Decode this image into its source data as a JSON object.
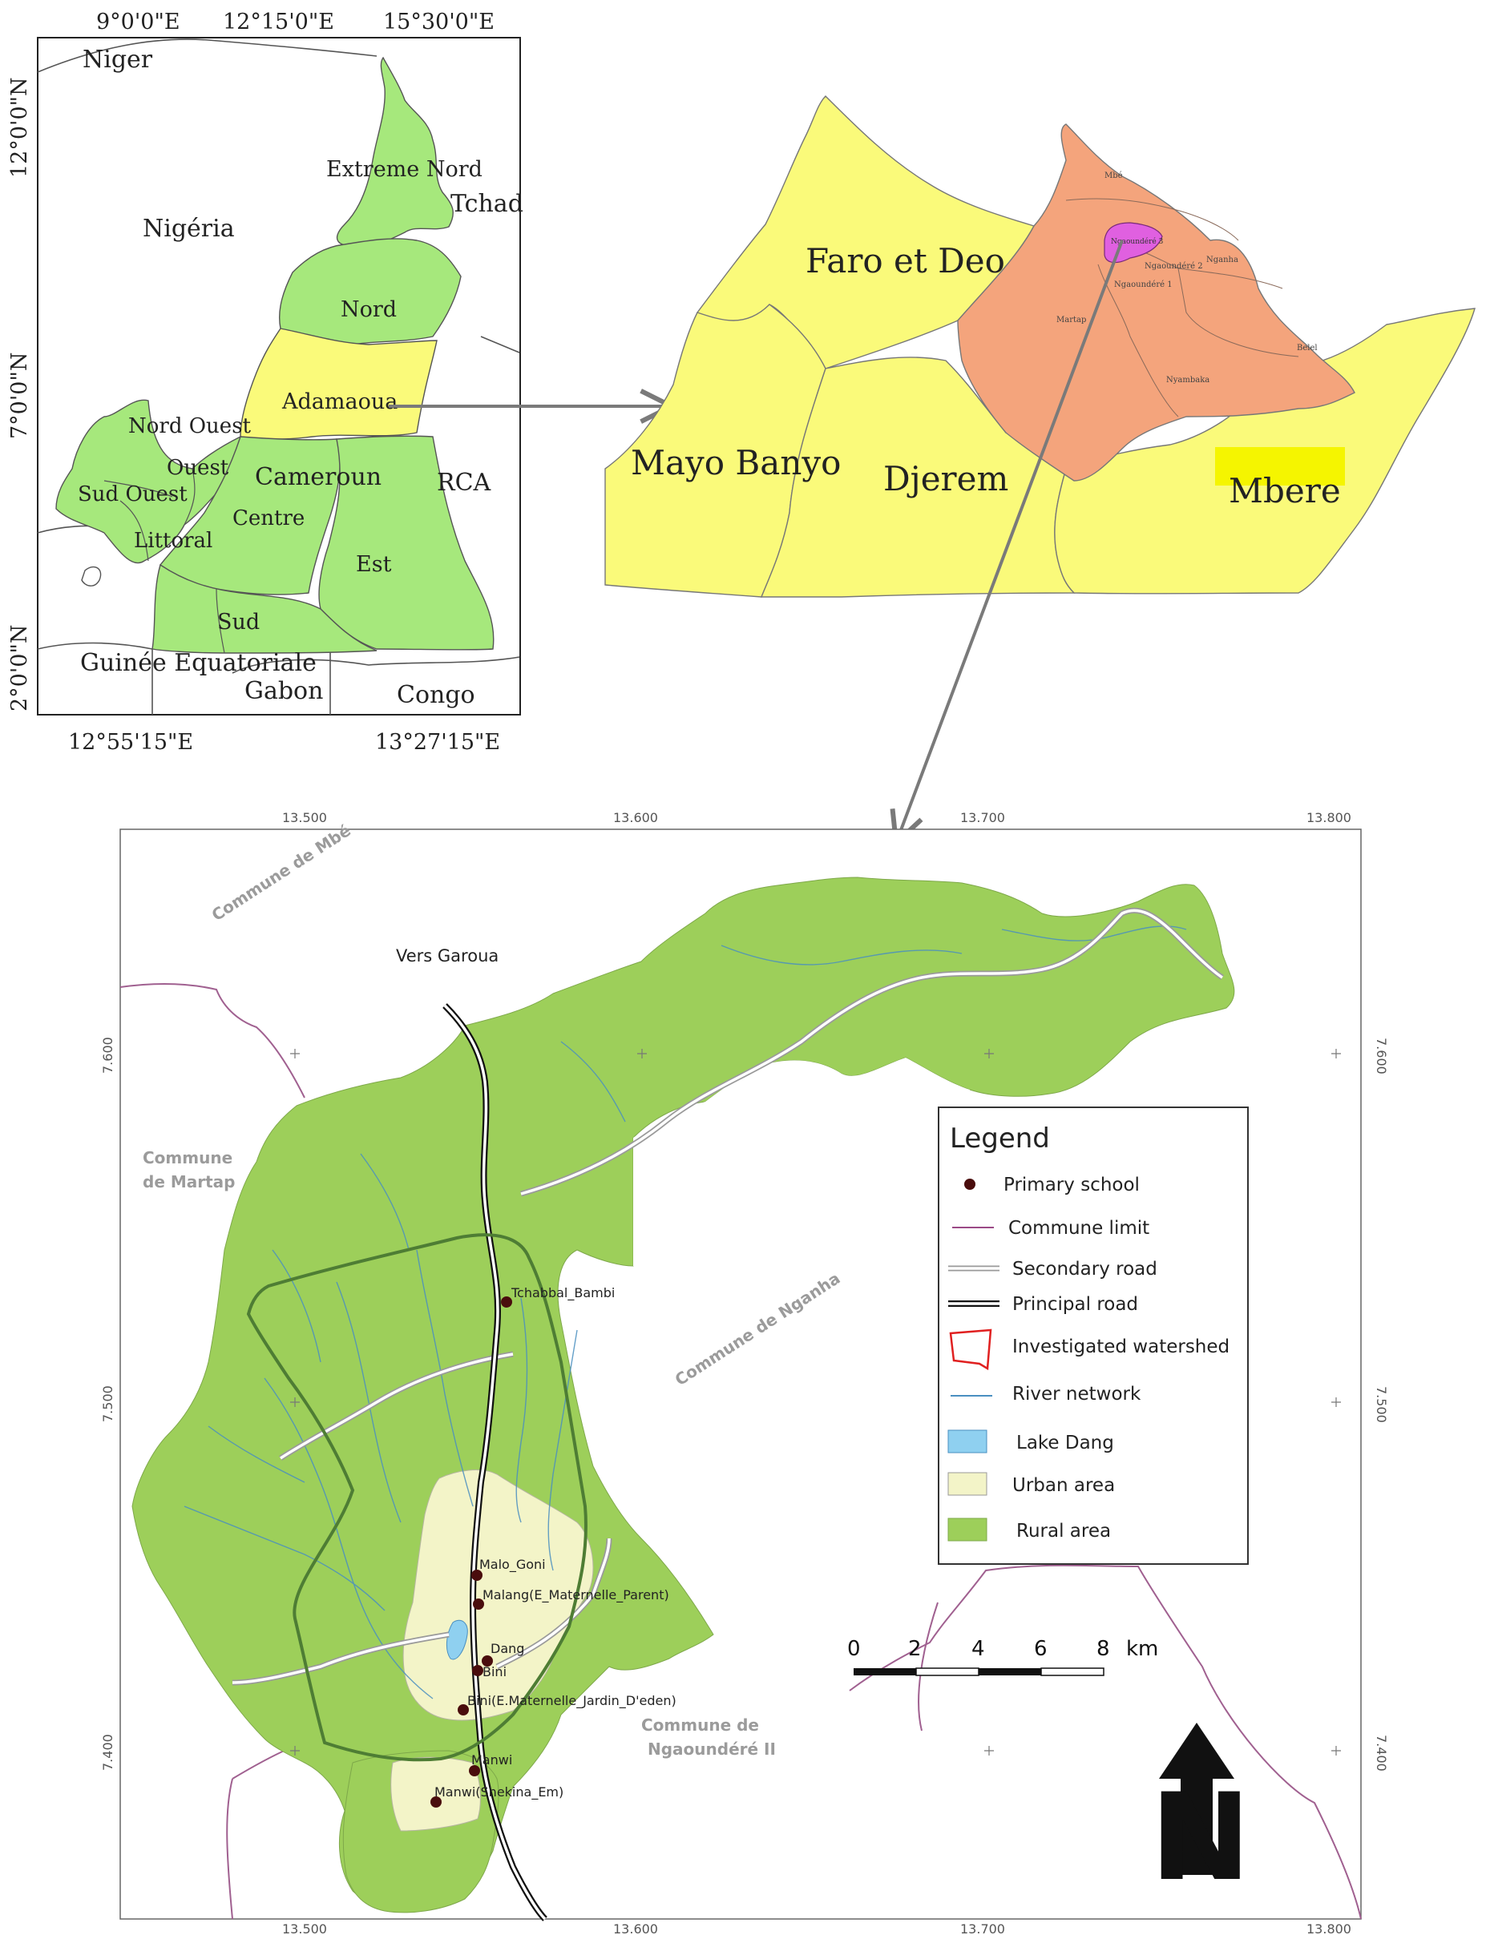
{
  "panel_cameroon": {
    "top_ticks": [
      "9°0'0\"E",
      "12°15'0\"E",
      "15°30'0\"E"
    ],
    "bottom_ticks": [
      "12°55'15\"E",
      "13°27'15\"E"
    ],
    "left_ticks": [
      "12°0'0\"N",
      "7°0'0\"N",
      "2°0'0\"N"
    ],
    "countries": {
      "niger": "Niger",
      "nigeria": "Nigéria",
      "tchad": "Tchad",
      "rca": "RCA",
      "guinee": "Guinée Equatoriale",
      "gabon": "Gabon",
      "congo": "Congo"
    },
    "regions": {
      "extreme_nord": "Extreme Nord",
      "nord": "Nord",
      "adamaoua": "Adamaoua",
      "nord_ouest": "Nord Ouest",
      "ouest": "Ouest",
      "sud_ouest": "Sud Ouest",
      "littoral": "Littoral",
      "centre": "Centre",
      "cameroun": "Cameroun",
      "est": "Est",
      "sud": "Sud"
    }
  },
  "panel_adamaoua": {
    "departments": {
      "faro_et_deo": "Faro et Deo",
      "mayo_banyo": "Mayo Banyo",
      "djerem": "Djerem",
      "mbere": "Mbere"
    },
    "communes": {
      "mbe": "Mbé",
      "ngaoundere3": "Ngaoundéré 3",
      "ngaoundere2": "Ngaoundéré 2",
      "ngaoundere1": "Ngaoundéré 1",
      "nganha": "Nganha",
      "martap": "Martap",
      "nyambaka": "Nyambaka",
      "belel": "Belel"
    }
  },
  "panel_watershed": {
    "lon_ticks": [
      "13.500",
      "13.600",
      "13.700",
      "13.800"
    ],
    "lat_ticks": [
      "7.600",
      "7.500",
      "7.400"
    ],
    "communes": {
      "mbe": "Commune de Mbé",
      "martap_1": "Commune",
      "martap_2": "de Martap",
      "nganha": "Commune de Nganha",
      "ngaoundere_1": "Commune de",
      "ngaoundere_2": "Ngaoundéré II"
    },
    "vers_garoua": "Vers Garoua",
    "schools": [
      {
        "label": "Tchabbal_Bambi"
      },
      {
        "label": "Malo_Goni"
      },
      {
        "label": "Malang(E_Maternelle_Parent)"
      },
      {
        "label": "Dang"
      },
      {
        "label": "Bini"
      },
      {
        "label": "Bini(E.Maternelle_Jardin_D'eden)"
      },
      {
        "label": "Manwi"
      },
      {
        "label": "Manwi(Shekina_Em)"
      }
    ],
    "legend": {
      "title": "Legend",
      "items": [
        {
          "label": "Primary school",
          "symbol": "dot",
          "color": "#4a0d0d"
        },
        {
          "label": "Commune limit",
          "symbol": "line",
          "color": "#9b4a86"
        },
        {
          "label": "Secondary road",
          "symbol": "double-line",
          "color": "#9a9a9a"
        },
        {
          "label": "Principal road",
          "symbol": "double-line-thick",
          "color": "#111111"
        },
        {
          "label": "Investigated watershed",
          "symbol": "polygon",
          "color": "#e02020"
        },
        {
          "label": "River network",
          "symbol": "line",
          "color": "#4a8fc0"
        },
        {
          "label": "Lake Dang",
          "symbol": "fill",
          "color": "#8fd0f0"
        },
        {
          "label": "Urban area",
          "symbol": "fill",
          "color": "#f3f4c8"
        },
        {
          "label": "Rural area",
          "symbol": "fill",
          "color": "#9dcf5a"
        }
      ]
    },
    "scale_bar": {
      "labels": [
        "0",
        "2",
        "4",
        "6",
        "8"
      ],
      "unit": "km"
    },
    "north": "N"
  },
  "colors": {
    "region_green": "#a6e87c",
    "adamaoua_yellow": "#fafa7a",
    "vina_orange": "#f4a47c",
    "ngaoundere3_magenta": "#e060e0",
    "rural_green": "#9dcf5a",
    "urban": "#f3f4c8",
    "watershed_outline": "#4e7d34"
  }
}
